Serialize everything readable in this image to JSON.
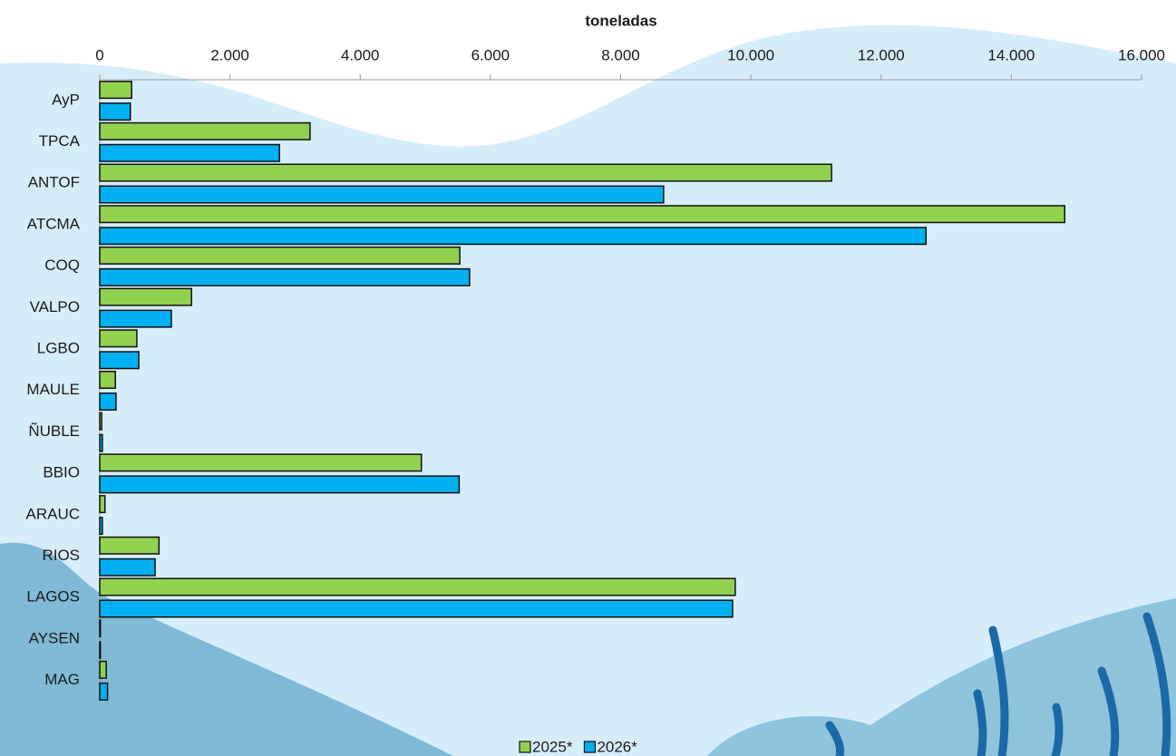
{
  "chart_data": {
    "type": "bar",
    "orientation": "horizontal",
    "x_label": "toneladas",
    "categories": [
      "AyP",
      "TPCA",
      "ANTOF",
      "ATCMA",
      "COQ",
      "VALPO",
      "LGBO",
      "MAULE",
      "ÑUBLE",
      "BBIO",
      "ARAUC",
      "RIOS",
      "LAGOS",
      "AYSEN",
      "MAG"
    ],
    "series": [
      {
        "name": "2025*",
        "color": "#92d050",
        "values": [
          490,
          3230,
          11240,
          14820,
          5530,
          1410,
          570,
          240,
          30,
          4940,
          80,
          910,
          9760,
          10,
          100
        ]
      },
      {
        "name": "2026*",
        "color": "#00b0f0",
        "values": [
          470,
          2760,
          8660,
          12690,
          5680,
          1100,
          600,
          250,
          40,
          5520,
          40,
          850,
          9720,
          10,
          120
        ]
      }
    ],
    "xlim": [
      0,
      16000
    ],
    "xticks": [
      0,
      {
        "value": 2000,
        "label": "2.000"
      },
      {
        "value": 4000,
        "label": "4.000"
      },
      {
        "value": 6000,
        "label": "6.000"
      },
      {
        "value": 8000,
        "label": "8.000"
      },
      {
        "value": 10000,
        "label": "10.000"
      },
      {
        "value": 12000,
        "label": "12.000"
      },
      {
        "value": 14000,
        "label": "14.000"
      },
      {
        "value": 16000,
        "label": "16.000"
      }
    ],
    "legend": "bottom"
  }
}
